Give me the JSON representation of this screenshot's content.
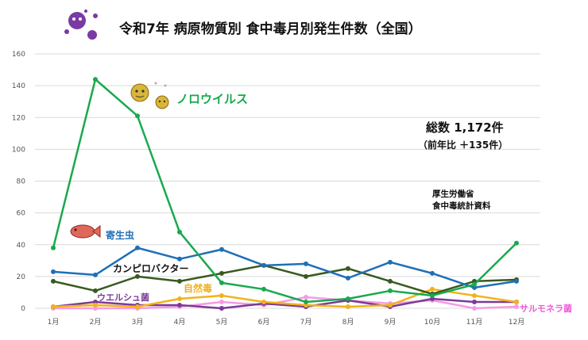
{
  "title": "令和7年  病原物質別  食中毒月別発生件数（全国）",
  "summary": {
    "total_line": "総数  1,172件",
    "yoy_line": "（前年比 ＋135件）"
  },
  "source": {
    "line1": "厚生労働省",
    "line2": "食中毒統計資料"
  },
  "chart_data": {
    "type": "line",
    "title": "令和7年  病原物質別  食中毒月別発生件数（全国）",
    "categories": [
      "1月",
      "2月",
      "3月",
      "4月",
      "5月",
      "6月",
      "7月",
      "8月",
      "9月",
      "10月",
      "11月",
      "12月"
    ],
    "ylim": [
      0,
      160
    ],
    "yticks": [
      "0",
      "20",
      "40",
      "60",
      "80",
      "100",
      "120",
      "140",
      "160"
    ],
    "grid": true,
    "series": [
      {
        "name": "ノロウイルス",
        "color": "#19a94e",
        "values": [
          38,
          144,
          121,
          48,
          16,
          12,
          4,
          6,
          11,
          8,
          15,
          41
        ]
      },
      {
        "name": "寄生虫",
        "color": "#1f6fb7",
        "values": [
          23,
          21,
          38,
          31,
          37,
          27,
          28,
          19,
          29,
          22,
          13,
          17
        ]
      },
      {
        "name": "カンピロバクター",
        "color": "#385a1f",
        "values": [
          17,
          11,
          20,
          17,
          22,
          27,
          20,
          25,
          17,
          9,
          17,
          18
        ]
      },
      {
        "name": "自然毒",
        "color": "#f2b21a",
        "values": [
          1,
          2,
          1,
          6,
          8,
          4,
          2,
          1,
          2,
          12,
          8,
          4
        ]
      },
      {
        "name": "ウエルシュ菌",
        "color": "#7c3a96",
        "values": [
          1,
          4,
          2,
          2,
          0,
          3,
          1,
          5,
          1,
          6,
          4,
          4
        ]
      },
      {
        "name": "サルモネラ菌",
        "color": "#f59be6",
        "values": [
          0,
          0,
          0,
          1,
          4,
          2,
          7,
          5,
          3,
          5,
          0,
          1
        ]
      }
    ]
  }
}
